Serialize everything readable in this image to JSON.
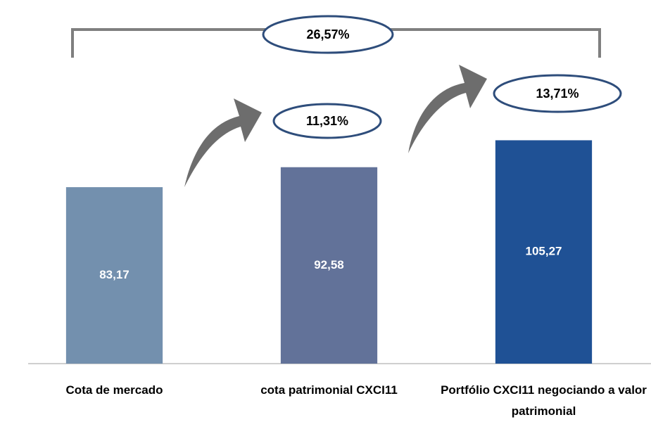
{
  "chart_data": {
    "type": "bar",
    "categories": [
      "Cota de mercado",
      "cota patrimonial CXCI11",
      "Portfólio CXCI11 negociando a valor patrimonial"
    ],
    "values": [
      83.17,
      92.58,
      105.27
    ],
    "value_labels": [
      "83,17",
      "92,58",
      "105,27"
    ],
    "colors": [
      "#7390ae",
      "#627299",
      "#1f5195"
    ],
    "ylim": [
      0,
      120
    ],
    "annotations": [
      "26,57%",
      "11,31%",
      "13,71%"
    ]
  }
}
